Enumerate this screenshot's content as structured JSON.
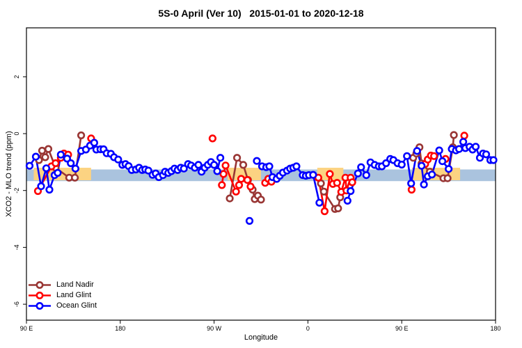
{
  "figure": {
    "title": "5S-0 April (Ver 10)   2015-01-01 to 2020-12-18",
    "x_label": "Longitude",
    "y_label": "XCO2 - MLO trend (ppm)"
  },
  "chart_data": {
    "type": "line",
    "title": "5S-0 April (Ver 10)   2015-01-01 to 2020-12-18",
    "xlabel": "Longitude",
    "ylabel": "XCO2 - MLO trend (ppm)",
    "grid": false,
    "legend_position": "bottom-left",
    "x_axis": {
      "range": [
        90,
        540
      ],
      "ticks": [
        {
          "pos": 90,
          "label": "90 E"
        },
        {
          "pos": 180,
          "label": "180"
        },
        {
          "pos": 270,
          "label": "90 W"
        },
        {
          "pos": 360,
          "label": "0"
        },
        {
          "pos": 450,
          "label": "90 E"
        },
        {
          "pos": 540,
          "label": "180"
        }
      ]
    },
    "y_axis": {
      "range": [
        -6.6,
        3.7
      ],
      "ticks": [
        {
          "pos": 2,
          "label": "2"
        },
        {
          "pos": 0,
          "label": "0"
        },
        {
          "pos": -2,
          "label": "-2"
        },
        {
          "pos": -4,
          "label": "-4"
        },
        {
          "pos": -6,
          "label": "-6"
        }
      ]
    },
    "bands": {
      "reference_band": {
        "color": "#aac3de",
        "y_range": [
          -1.67,
          -1.26
        ],
        "x_range": [
          90,
          540
        ]
      },
      "land_bands": {
        "color": "#fdd astronom",
        "y_range": [
          -1.64,
          -1.2
        ],
        "x_ranges": [
          [
            97,
            152
          ],
          [
            283,
            315
          ],
          [
            369,
            394
          ],
          [
            460,
            506
          ]
        ],
        "color_fix": "#fcd382"
      }
    },
    "series": [
      {
        "name": "Land Nadir",
        "color": "#993634",
        "segments": [
          [
            [
              102,
              -0.93
            ],
            [
              105,
              -0.6
            ],
            [
              108,
              -0.83
            ],
            [
              111,
              -0.54
            ],
            [
              118,
              -1.2
            ],
            [
              131,
              -1.55
            ],
            [
              136.5,
              -1.55
            ],
            [
              142.5,
              -0.06
            ]
          ],
          [
            [
              285,
              -2.28
            ],
            [
              292,
              -0.85
            ],
            [
              298,
              -1.1
            ],
            [
              302.5,
              -1.63
            ],
            [
              307,
              -1.97
            ],
            [
              309,
              -2.3
            ],
            [
              312,
              -2.18
            ],
            [
              315,
              -2.32
            ]
          ],
          [
            [
              372.5,
              -1.75
            ],
            [
              375.3,
              -2.04
            ],
            [
              386,
              -2.65
            ],
            [
              389,
              -2.63
            ],
            [
              391,
              -2.24
            ]
          ],
          [
            [
              461,
              -0.85
            ],
            [
              464,
              -0.7
            ],
            [
              467,
              -0.48
            ],
            [
              469,
              -1.05
            ],
            [
              477,
              -1.34
            ],
            [
              490,
              -1.57
            ],
            [
              494,
              -1.57
            ],
            [
              499,
              -0.48
            ],
            [
              500,
              -0.05
            ]
          ]
        ]
      },
      {
        "name": "Land Glint",
        "color": "#ff0000",
        "segments": [
          [
            [
              101,
              -2.02
            ],
            [
              114,
              -1.15
            ],
            [
              118,
              -1.04
            ],
            [
              123,
              -0.85
            ],
            [
              126,
              -0.7
            ],
            [
              130,
              -0.74
            ]
          ],
          [
            [
              152,
              -0.17
            ]
          ],
          [
            [
              268.5,
              -0.17
            ]
          ],
          [
            [
              277.5,
              -1.81
            ],
            [
              279,
              -1.42
            ],
            [
              281,
              -1.12
            ],
            [
              291,
              -2.04
            ],
            [
              294,
              -1.81
            ],
            [
              296,
              -1.59
            ],
            [
              302,
              -1.63
            ],
            [
              305,
              -1.86
            ]
          ],
          [
            [
              319,
              -1.73
            ],
            [
              322,
              -1.59
            ],
            [
              325,
              -1.69
            ]
          ],
          [
            [
              370,
              -1.55
            ],
            [
              376,
              -2.73
            ],
            [
              381,
              -1.42
            ],
            [
              384,
              -1.77
            ],
            [
              388,
              -1.73
            ],
            [
              392,
              -2.05
            ],
            [
              396,
              -1.55
            ],
            [
              397,
              -2.0
            ],
            [
              401,
              -1.55
            ],
            [
              402.5,
              -1.71
            ]
          ],
          [
            [
              459.5,
              -1.97
            ]
          ],
          [
            [
              472.5,
              -1.07
            ],
            [
              475,
              -0.91
            ],
            [
              478,
              -0.77
            ],
            [
              481,
              -0.79
            ]
          ],
          [
            [
              492,
              -0.89
            ]
          ],
          [
            [
              510,
              -0.07
            ]
          ]
        ]
      },
      {
        "name": "Ocean Glint",
        "color": "#0000ff",
        "segments": [
          [
            [
              93,
              -1.13
            ],
            [
              99,
              -0.81
            ],
            [
              104,
              -1.85
            ],
            [
              109,
              -1.22
            ],
            [
              112,
              -1.97
            ],
            [
              117,
              -1.46
            ],
            [
              120,
              -1.38
            ],
            [
              123,
              -0.74
            ],
            [
              129,
              -0.88
            ],
            [
              132.5,
              -1.04
            ],
            [
              137,
              -1.23
            ],
            [
              142.5,
              -0.61
            ],
            [
              147,
              -0.56
            ],
            [
              151,
              -0.42
            ],
            [
              155,
              -0.32
            ],
            [
              157,
              -0.56
            ],
            [
              161,
              -0.55
            ],
            [
              164,
              -0.55
            ],
            [
              167,
              -0.69
            ],
            [
              171,
              -0.71
            ],
            [
              174,
              -0.83
            ],
            [
              178,
              -0.91
            ],
            [
              182,
              -1.1
            ],
            [
              185,
              -1.07
            ],
            [
              188,
              -1.14
            ],
            [
              191,
              -1.28
            ],
            [
              195,
              -1.26
            ],
            [
              198,
              -1.2
            ],
            [
              201,
              -1.28
            ],
            [
              204,
              -1.26
            ],
            [
              207,
              -1.3
            ],
            [
              211,
              -1.45
            ],
            [
              214,
              -1.4
            ],
            [
              217,
              -1.53
            ],
            [
              221,
              -1.46
            ],
            [
              223,
              -1.34
            ],
            [
              226,
              -1.38
            ],
            [
              229,
              -1.32
            ],
            [
              232,
              -1.23
            ],
            [
              235,
              -1.28
            ],
            [
              238,
              -1.2
            ],
            [
              241,
              -1.23
            ],
            [
              245,
              -1.07
            ],
            [
              248,
              -1.12
            ],
            [
              251.5,
              -1.2
            ],
            [
              255,
              -1.1
            ],
            [
              258,
              -1.34
            ],
            [
              261,
              -1.2
            ],
            [
              264,
              -1.1
            ],
            [
              267,
              -1.0
            ],
            [
              270,
              -1.1
            ],
            [
              273,
              -1.32
            ],
            [
              276,
              -0.85
            ]
          ],
          [
            [
              304,
              -3.07
            ]
          ],
          [
            [
              311,
              -0.96
            ],
            [
              316,
              -1.15
            ],
            [
              320,
              -1.18
            ],
            [
              323,
              -1.15
            ],
            [
              326,
              -1.53
            ],
            [
              330,
              -1.59
            ],
            [
              333,
              -1.48
            ],
            [
              336,
              -1.37
            ],
            [
              340,
              -1.3
            ],
            [
              343,
              -1.23
            ],
            [
              346,
              -1.2
            ],
            [
              349,
              -1.15
            ],
            [
              355,
              -1.46
            ],
            [
              358,
              -1.48
            ],
            [
              361,
              -1.46
            ],
            [
              365,
              -1.45
            ],
            [
              371,
              -2.43
            ]
          ],
          [
            [
              398,
              -2.36
            ],
            [
              401,
              -2.02
            ],
            [
              408,
              -1.4
            ],
            [
              411,
              -1.18
            ],
            [
              416,
              -1.46
            ],
            [
              420,
              -1.01
            ],
            [
              424,
              -1.1
            ],
            [
              428,
              -1.15
            ],
            [
              431,
              -1.15
            ],
            [
              435,
              -1.04
            ],
            [
              439,
              -0.89
            ],
            [
              442,
              -0.93
            ],
            [
              446,
              -1.04
            ],
            [
              450,
              -1.09
            ],
            [
              455,
              -0.79
            ],
            [
              459,
              -1.75
            ],
            [
              464.7,
              -0.61
            ],
            [
              469,
              -1.13
            ],
            [
              471.3,
              -1.79
            ],
            [
              475,
              -1.5
            ],
            [
              479,
              -1.44
            ],
            [
              486,
              -0.59
            ],
            [
              489,
              -0.97
            ],
            [
              495,
              -1.24
            ],
            [
              498,
              -0.54
            ],
            [
              502,
              -0.59
            ],
            [
              505,
              -0.54
            ],
            [
              509,
              -0.29
            ],
            [
              511,
              -0.51
            ],
            [
              515,
              -0.46
            ],
            [
              518,
              -0.56
            ],
            [
              521,
              -0.46
            ],
            [
              525,
              -0.85
            ],
            [
              528,
              -0.7
            ],
            [
              531,
              -0.73
            ],
            [
              535,
              -0.93
            ],
            [
              538,
              -0.93
            ]
          ]
        ]
      }
    ]
  }
}
